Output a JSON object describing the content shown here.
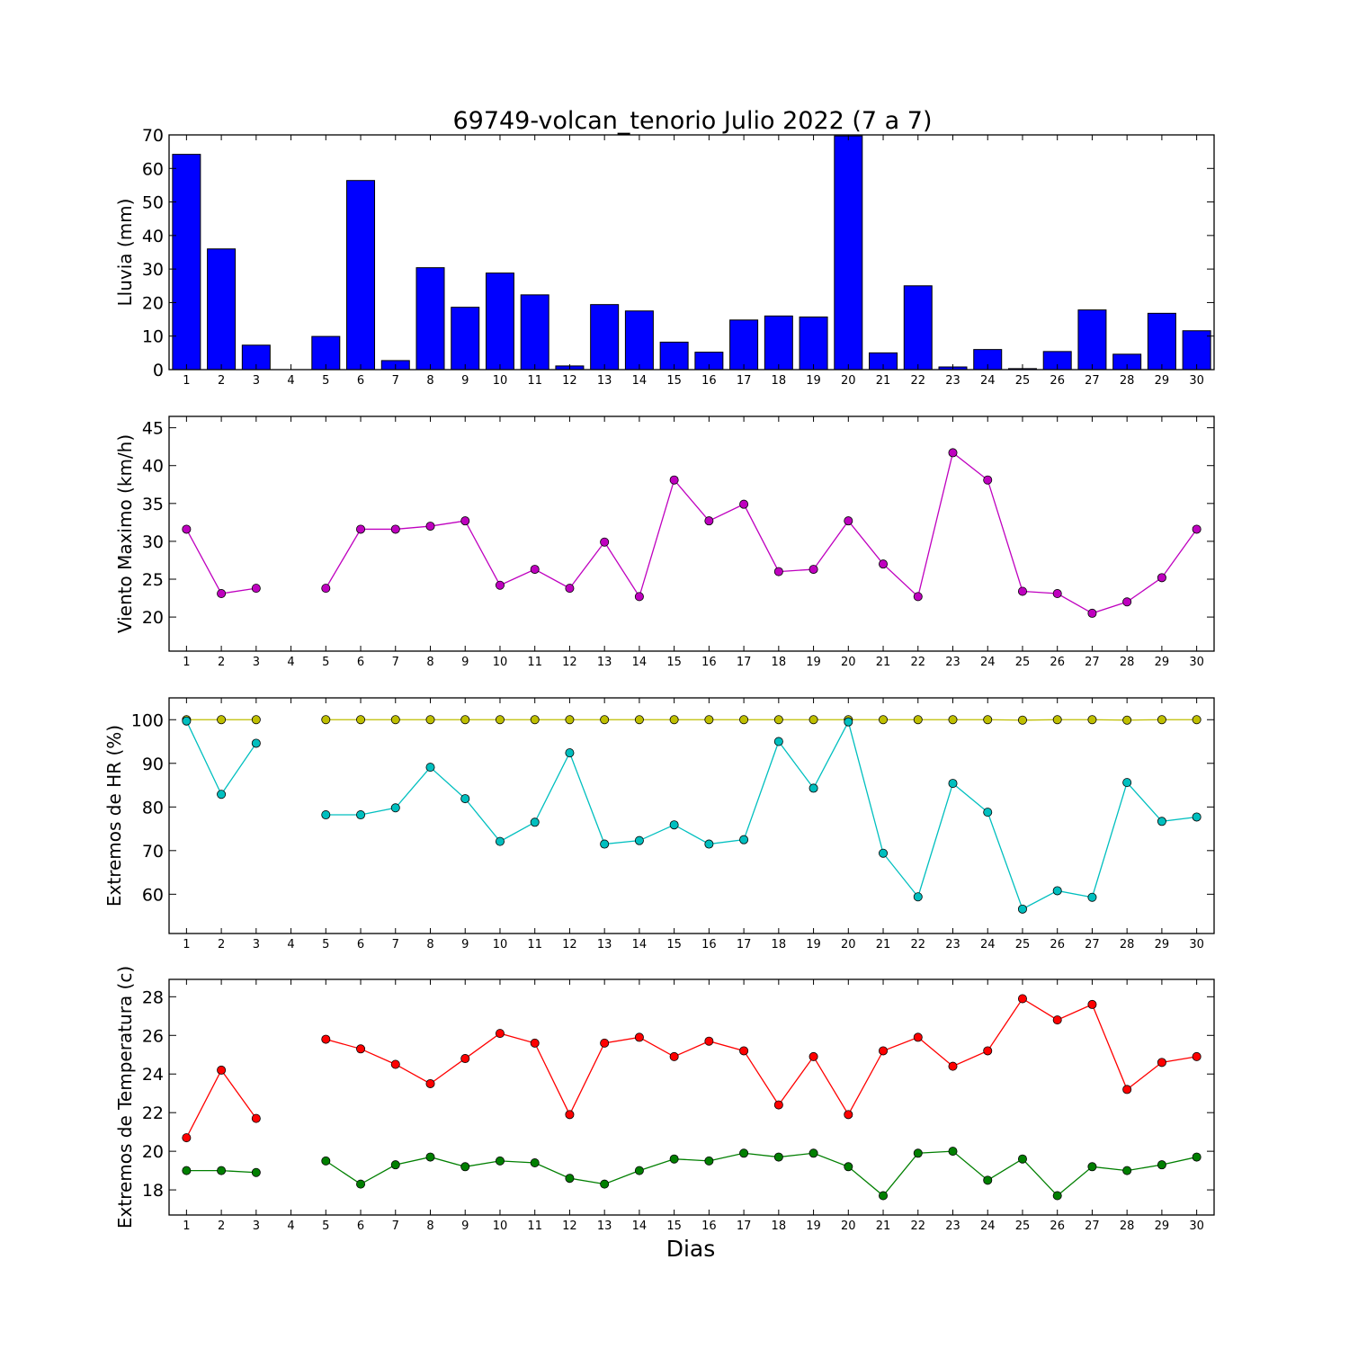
{
  "figure": {
    "title": "69749-volcan_tenorio Julio 2022  (7 a 7)",
    "xlabel": "Dias"
  },
  "chart_data": [
    {
      "type": "bar",
      "ylabel": "Lluvia (mm)",
      "ylim": [
        0,
        70
      ],
      "yticks": [
        0,
        10,
        20,
        30,
        40,
        50,
        60,
        70
      ],
      "xlim": [
        0.5,
        30.5
      ],
      "x": [
        1,
        2,
        3,
        4,
        5,
        6,
        7,
        8,
        9,
        10,
        11,
        12,
        13,
        14,
        15,
        16,
        17,
        18,
        19,
        20,
        21,
        22,
        23,
        24,
        25,
        26,
        27,
        28,
        29,
        30
      ],
      "series": [
        {
          "color": "#0000ff",
          "values": [
            64.2,
            36.0,
            7.3,
            0,
            9.9,
            56.4,
            2.7,
            30.4,
            18.6,
            28.8,
            22.3,
            1.1,
            19.4,
            17.5,
            8.2,
            5.2,
            14.8,
            16.0,
            15.7,
            69.7,
            5.0,
            25.0,
            0.8,
            6.0,
            0.3,
            5.4,
            17.8,
            4.6,
            16.8,
            11.6
          ]
        }
      ]
    },
    {
      "type": "line",
      "ylabel": "Viento Maximo (km/h)",
      "ylim": [
        15.5,
        46.5
      ],
      "yticks": [
        20,
        25,
        30,
        35,
        40,
        45
      ],
      "xlim": [
        0.5,
        30.5
      ],
      "x": [
        1,
        2,
        3,
        4,
        5,
        6,
        7,
        8,
        9,
        10,
        11,
        12,
        13,
        14,
        15,
        16,
        17,
        18,
        19,
        20,
        21,
        22,
        23,
        24,
        25,
        26,
        27,
        28,
        29,
        30
      ],
      "series": [
        {
          "color": "#bf00bf",
          "values": [
            31.6,
            23.1,
            23.8,
            null,
            23.8,
            31.6,
            31.6,
            32.0,
            32.7,
            24.2,
            26.3,
            23.8,
            29.9,
            22.7,
            38.1,
            32.7,
            34.9,
            26.0,
            26.3,
            32.7,
            27.0,
            22.7,
            41.7,
            38.1,
            23.4,
            23.1,
            20.5,
            22.0,
            25.2,
            31.6
          ]
        }
      ]
    },
    {
      "type": "line",
      "ylabel": "Extremos de HR (%)",
      "ylim": [
        51,
        105
      ],
      "yticks": [
        60,
        70,
        80,
        90,
        100
      ],
      "xlim": [
        0.5,
        30.5
      ],
      "x": [
        1,
        2,
        3,
        4,
        5,
        6,
        7,
        8,
        9,
        10,
        11,
        12,
        13,
        14,
        15,
        16,
        17,
        18,
        19,
        20,
        21,
        22,
        23,
        24,
        25,
        26,
        27,
        28,
        29,
        30
      ],
      "series": [
        {
          "color": "#bfbf00",
          "values": [
            100,
            100,
            100,
            null,
            100,
            100,
            100,
            100,
            100,
            100,
            100,
            100,
            100,
            100,
            100,
            100,
            100,
            100,
            100,
            100,
            100,
            100,
            100,
            100,
            99.9,
            100,
            100,
            99.9,
            100,
            100
          ]
        },
        {
          "color": "#00bfbf",
          "values": [
            99.7,
            82.9,
            94.6,
            null,
            78.2,
            78.2,
            79.8,
            89.1,
            81.9,
            72.1,
            76.5,
            92.4,
            71.5,
            72.3,
            75.9,
            71.5,
            72.5,
            95.0,
            84.3,
            99.5,
            69.4,
            59.4,
            85.4,
            78.8,
            56.6,
            60.8,
            59.3,
            85.6,
            76.7,
            77.7
          ]
        }
      ]
    },
    {
      "type": "line",
      "ylabel": "Extremos de Temperatura (c)",
      "ylim": [
        16.7,
        28.9
      ],
      "yticks": [
        18,
        20,
        22,
        24,
        26,
        28
      ],
      "xlim": [
        0.5,
        30.5
      ],
      "x": [
        1,
        2,
        3,
        4,
        5,
        6,
        7,
        8,
        9,
        10,
        11,
        12,
        13,
        14,
        15,
        16,
        17,
        18,
        19,
        20,
        21,
        22,
        23,
        24,
        25,
        26,
        27,
        28,
        29,
        30
      ],
      "series": [
        {
          "color": "#ff0000",
          "values": [
            20.7,
            24.2,
            21.7,
            null,
            25.8,
            25.3,
            24.5,
            23.5,
            24.8,
            26.1,
            25.6,
            21.9,
            25.6,
            25.9,
            24.9,
            25.7,
            25.2,
            22.4,
            24.9,
            21.9,
            25.2,
            25.9,
            24.4,
            25.2,
            27.9,
            26.8,
            27.6,
            23.2,
            24.6,
            24.9
          ]
        },
        {
          "color": "#007f00",
          "values": [
            19.0,
            19.0,
            18.9,
            null,
            19.5,
            18.3,
            19.3,
            19.7,
            19.2,
            19.5,
            19.4,
            18.6,
            18.3,
            19.0,
            19.6,
            19.5,
            19.9,
            19.7,
            19.9,
            19.2,
            17.7,
            19.9,
            20.0,
            18.5,
            19.6,
            17.7,
            19.2,
            19.0,
            19.3,
            19.7
          ]
        }
      ]
    }
  ]
}
